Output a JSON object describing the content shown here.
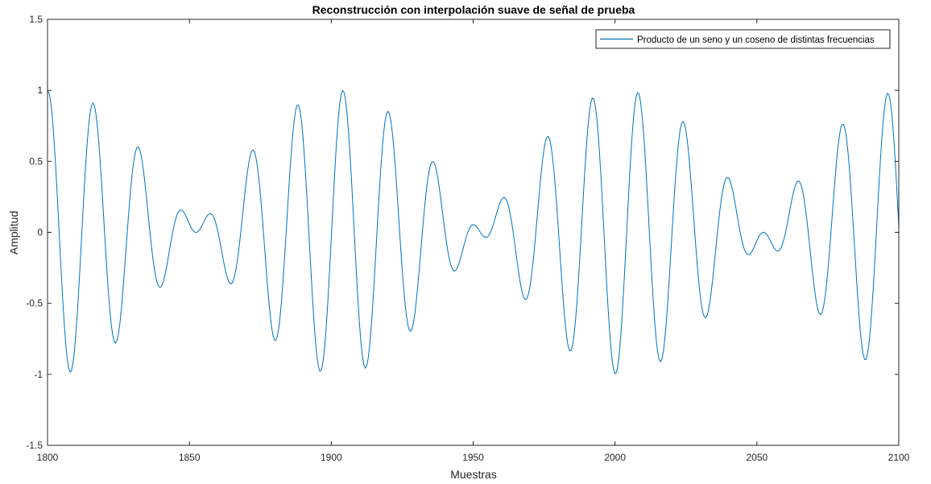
{
  "chart_data": {
    "type": "line",
    "title": "Reconstrucción con interpolación suave de señal de prueba",
    "xlabel": "Muestras",
    "ylabel": "Amplitud",
    "xlim": [
      1800,
      2100
    ],
    "ylim": [
      -1.5,
      1.5
    ],
    "xticks": [
      "1800",
      "1850",
      "1900",
      "1950",
      "2000",
      "2050",
      "2100"
    ],
    "yticks": [
      "1.5",
      "1",
      "0.5",
      "0",
      "-0.5",
      "-1",
      "-1.5"
    ],
    "grid": false,
    "legend_position": "top-right",
    "series": [
      {
        "name": "Producto de un seno y un coseno de distintas frecuencias",
        "color": "#0072BD",
        "model": "product of a sine and a cosine",
        "fast_period": 16,
        "slow_period": 200,
        "x_start": 1800,
        "x_end": 2100,
        "sample_step": 0.5
      }
    ]
  }
}
